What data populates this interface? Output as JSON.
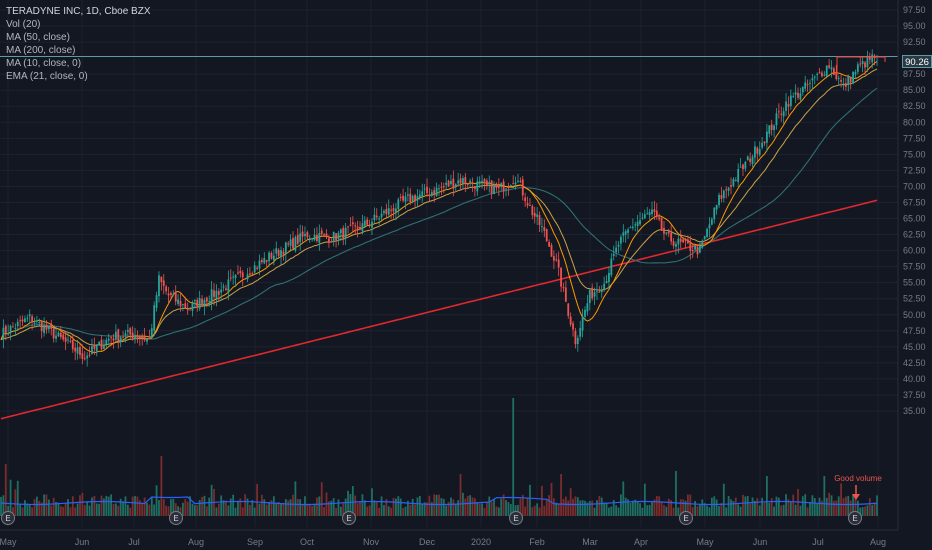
{
  "header": {
    "title": "TERADYNE INC, 1D, Cboe BZX",
    "indicators": [
      "Vol (20)",
      "MA (50, close)",
      "MA (200, close)",
      "MA (10, close, 0)",
      "EMA (21, close, 0)"
    ]
  },
  "price_tag": "90.26",
  "annotation": "Good volume",
  "colors": {
    "background": "#131722",
    "up": "#26a69a",
    "down": "#ef5350",
    "ma50": "#2f6f73",
    "ma200": "#e0282e",
    "ma10": "#ff9800",
    "ema21": "#c9a24a",
    "vol_ma": "#2962ff",
    "last_price_line": "#5d9aa8",
    "resistance_box": "#f44336"
  },
  "chart_data": {
    "type": "candlestick",
    "title": "TERADYNE INC, 1D, Cboe BZX",
    "ylim": [
      32.5,
      97.5
    ],
    "y_ticks": [
      "35.00",
      "37.50",
      "40.00",
      "42.50",
      "45.00",
      "47.50",
      "50.00",
      "52.50",
      "55.00",
      "57.50",
      "60.00",
      "62.50",
      "65.00",
      "67.50",
      "70.00",
      "72.50",
      "75.00",
      "77.50",
      "80.00",
      "82.50",
      "85.00",
      "87.50",
      "92.50",
      "95.00",
      "97.50"
    ],
    "x_ticks": [
      "May",
      "Jun",
      "Jul",
      "Aug",
      "Sep",
      "Oct",
      "Nov",
      "Dec",
      "2020",
      "Feb",
      "Mar",
      "Apr",
      "May",
      "Jun",
      "Jul",
      "Aug"
    ],
    "last_price": 90.26,
    "close_anchors": {
      "x_index": [
        0,
        12,
        22,
        35,
        46,
        56,
        62,
        66,
        70,
        78,
        90,
        104,
        112,
        128,
        138,
        152,
        170,
        182,
        192,
        202,
        208,
        215,
        222,
        226,
        232,
        240,
        246,
        252,
        258,
        264,
        272,
        278,
        284,
        292,
        300,
        310,
        318,
        328,
        338,
        346,
        352,
        358,
        364,
        366
      ],
      "close": [
        47.0,
        49.5,
        47.0,
        43.5,
        46.5,
        47.0,
        46.0,
        55.5,
        53.0,
        51.0,
        53.5,
        57.0,
        59.0,
        62.5,
        62.0,
        64.0,
        68.0,
        69.5,
        71.0,
        70.0,
        69.5,
        71.5,
        66.0,
        63.5,
        58.0,
        46.0,
        53.0,
        55.0,
        61.0,
        64.0,
        66.0,
        62.0,
        61.0,
        60.0,
        68.0,
        73.0,
        77.0,
        83.0,
        86.0,
        89.0,
        85.5,
        88.5,
        90.0,
        90.26
      ]
    },
    "moving_averages": [
      "MA (50, close)",
      "MA (200, close)",
      "MA (10, close, 0)",
      "EMA (21, close, 0)"
    ],
    "volume_indicator": "Vol (20)",
    "earnings_markers": [
      "E",
      "E",
      "E",
      "E",
      "E",
      "E"
    ],
    "earnings_x_index": [
      3,
      68,
      132,
      192,
      258,
      320
    ]
  }
}
